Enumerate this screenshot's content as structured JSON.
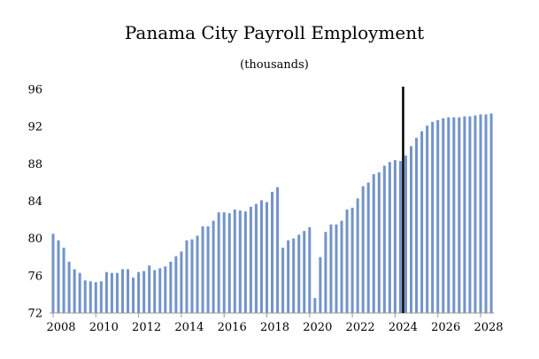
{
  "chart_data": {
    "type": "bar",
    "title": "Panama City Payroll Employment",
    "subtitle": "(thousands)",
    "xlabel": "",
    "ylabel": "",
    "ylim": [
      72,
      96
    ],
    "yticks": [
      "72",
      "76",
      "80",
      "84",
      "88",
      "92",
      "96"
    ],
    "xticks": [
      "2008",
      "2010",
      "2012",
      "2014",
      "2016",
      "2018",
      "2020",
      "2022",
      "2024",
      "2026",
      "2028"
    ],
    "grid": false,
    "bar_color": "#7394c9",
    "forecast_line_color": "#000000",
    "forecast_start": "2024 Q3",
    "categories": [
      "2008 Q1",
      "2008 Q2",
      "2008 Q3",
      "2008 Q4",
      "2009 Q1",
      "2009 Q2",
      "2009 Q3",
      "2009 Q4",
      "2010 Q1",
      "2010 Q2",
      "2010 Q3",
      "2010 Q4",
      "2011 Q1",
      "2011 Q2",
      "2011 Q3",
      "2011 Q4",
      "2012 Q1",
      "2012 Q2",
      "2012 Q3",
      "2012 Q4",
      "2013 Q1",
      "2013 Q2",
      "2013 Q3",
      "2013 Q4",
      "2014 Q1",
      "2014 Q2",
      "2014 Q3",
      "2014 Q4",
      "2015 Q1",
      "2015 Q2",
      "2015 Q3",
      "2015 Q4",
      "2016 Q1",
      "2016 Q2",
      "2016 Q3",
      "2016 Q4",
      "2017 Q1",
      "2017 Q2",
      "2017 Q3",
      "2017 Q4",
      "2018 Q1",
      "2018 Q2",
      "2018 Q3",
      "2018 Q4",
      "2019 Q1",
      "2019 Q2",
      "2019 Q3",
      "2019 Q4",
      "2020 Q1",
      "2020 Q2",
      "2020 Q3",
      "2020 Q4",
      "2021 Q1",
      "2021 Q2",
      "2021 Q3",
      "2021 Q4",
      "2022 Q1",
      "2022 Q2",
      "2022 Q3",
      "2022 Q4",
      "2023 Q1",
      "2023 Q2",
      "2023 Q3",
      "2023 Q4",
      "2024 Q1",
      "2024 Q2",
      "2024 Q3",
      "2024 Q4",
      "2025 Q1",
      "2025 Q2",
      "2025 Q3",
      "2025 Q4",
      "2026 Q1",
      "2026 Q2",
      "2026 Q3",
      "2026 Q4",
      "2027 Q1",
      "2027 Q2",
      "2027 Q3",
      "2027 Q4",
      "2028 Q1",
      "2028 Q2",
      "2028 Q3"
    ],
    "values": [
      80.5,
      79.8,
      79.0,
      77.5,
      76.7,
      76.3,
      75.5,
      75.4,
      75.3,
      75.4,
      76.4,
      76.3,
      76.3,
      76.7,
      76.7,
      75.8,
      76.4,
      76.5,
      77.1,
      76.6,
      76.8,
      77.0,
      77.5,
      78.1,
      78.6,
      79.8,
      79.9,
      80.3,
      81.3,
      81.3,
      81.9,
      82.8,
      82.8,
      82.7,
      83.1,
      83.0,
      82.9,
      83.4,
      83.7,
      84.1,
      83.9,
      85.0,
      85.5,
      79.0,
      79.8,
      80.0,
      80.4,
      80.8,
      81.2,
      73.6,
      78.0,
      80.7,
      81.5,
      81.5,
      81.9,
      83.1,
      83.3,
      84.3,
      85.6,
      86.0,
      86.9,
      87.1,
      87.8,
      88.2,
      88.4,
      88.3,
      88.9,
      89.9,
      90.8,
      91.5,
      92.1,
      92.5,
      92.7,
      92.9,
      93.0,
      93.0,
      93.0,
      93.1,
      93.1,
      93.2,
      93.3,
      93.3,
      93.4
    ]
  }
}
